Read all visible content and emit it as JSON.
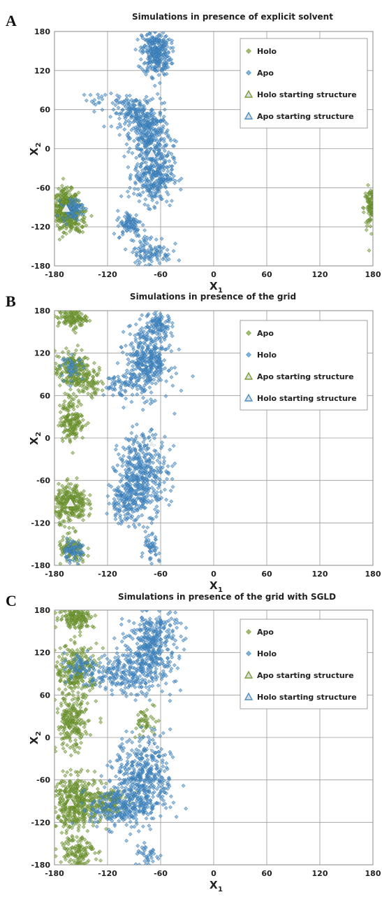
{
  "chart_data": [
    {
      "type": "scatter",
      "panel_label": "A",
      "title": "Simulations in presence of explicit solvent",
      "xlabel": "X",
      "xlabel_sub": "1",
      "ylabel": "X",
      "ylabel_sub": "2",
      "xlim": [
        -180,
        180
      ],
      "ylim": [
        -180,
        180
      ],
      "xticks": [
        "-180",
        "-120",
        "-60",
        "0",
        "60",
        "120",
        "180"
      ],
      "yticks": [
        "180",
        "120",
        "60",
        "0",
        "-60",
        "-120",
        "-180"
      ],
      "grid": true,
      "legend_position": "top-right",
      "legend": [
        "Holo",
        "Apo",
        "Holo starting structure",
        "Apo starting structure"
      ],
      "series": [
        {
          "name": "Holo",
          "marker": "diamond",
          "color": "#7aa03a",
          "clusters": [
            {
              "x": -167,
              "y": -92,
              "sx": 7,
              "sy": 14,
              "n": 420
            },
            {
              "x": -155,
              "y": -110,
              "sx": 7,
              "sy": 10,
              "n": 80
            },
            {
              "x": 178,
              "y": -92,
              "sx": 4,
              "sy": 16,
              "n": 130
            }
          ]
        },
        {
          "name": "Apo",
          "marker": "diamond",
          "color": "#4a90c8",
          "clusters": [
            {
              "x": -65,
              "y": 148,
              "sx": 8,
              "sy": 18,
              "n": 320
            },
            {
              "x": -90,
              "y": 55,
              "sx": 12,
              "sy": 12,
              "n": 160
            },
            {
              "x": -72,
              "y": 20,
              "sx": 10,
              "sy": 22,
              "n": 260
            },
            {
              "x": -68,
              "y": -40,
              "sx": 11,
              "sy": 22,
              "n": 330
            },
            {
              "x": -95,
              "y": -115,
              "sx": 7,
              "sy": 10,
              "n": 90
            },
            {
              "x": -72,
              "y": -160,
              "sx": 12,
              "sy": 14,
              "n": 120
            },
            {
              "x": -160,
              "y": -92,
              "sx": 6,
              "sy": 8,
              "n": 80
            },
            {
              "x": -120,
              "y": 75,
              "sx": 15,
              "sy": 6,
              "n": 20
            }
          ]
        },
        {
          "name": "Holo starting structure",
          "marker": "triangle",
          "color": "#7aa03a",
          "points": [
            {
              "x": -167,
              "y": -92
            }
          ]
        },
        {
          "name": "Apo starting structure",
          "marker": "triangle",
          "color": "#4a90c8",
          "points": [
            {
              "x": -70,
              "y": -8
            }
          ]
        }
      ]
    },
    {
      "type": "scatter",
      "panel_label": "B",
      "title": "Simulations in presence of the grid",
      "xlabel": "X",
      "xlabel_sub": "1",
      "ylabel": "X",
      "ylabel_sub": "2",
      "xlim": [
        -180,
        180
      ],
      "ylim": [
        -180,
        180
      ],
      "xticks": [
        "-180",
        "-120",
        "-60",
        "0",
        "60",
        "120",
        "180"
      ],
      "yticks": [
        "180",
        "120",
        "60",
        "0",
        "-60",
        "-120",
        "-180"
      ],
      "grid": true,
      "legend_position": "top-right",
      "legend": [
        "Apo",
        "Holo",
        "Apo starting structure",
        "Holo starting structure"
      ],
      "series": [
        {
          "name": "Apo",
          "marker": "diamond",
          "color": "#7aa03a",
          "clusters": [
            {
              "x": -160,
              "y": 170,
              "sx": 8,
              "sy": 7,
              "n": 130
            },
            {
              "x": -160,
              "y": 95,
              "sx": 10,
              "sy": 15,
              "n": 220
            },
            {
              "x": -160,
              "y": 25,
              "sx": 7,
              "sy": 15,
              "n": 170
            },
            {
              "x": -162,
              "y": -92,
              "sx": 9,
              "sy": 13,
              "n": 300
            },
            {
              "x": -160,
              "y": -160,
              "sx": 8,
              "sy": 10,
              "n": 110
            },
            {
              "x": -140,
              "y": 80,
              "sx": 8,
              "sy": 10,
              "n": 60
            }
          ]
        },
        {
          "name": "Holo",
          "marker": "diamond",
          "color": "#4a90c8",
          "clusters": [
            {
              "x": -75,
              "y": 110,
              "sx": 12,
              "sy": 25,
              "n": 400
            },
            {
              "x": -62,
              "y": 160,
              "sx": 6,
              "sy": 10,
              "n": 80
            },
            {
              "x": -105,
              "y": 75,
              "sx": 10,
              "sy": 8,
              "n": 60
            },
            {
              "x": -80,
              "y": -50,
              "sx": 14,
              "sy": 28,
              "n": 420
            },
            {
              "x": -100,
              "y": -90,
              "sx": 10,
              "sy": 15,
              "n": 140
            },
            {
              "x": -72,
              "y": -160,
              "sx": 5,
              "sy": 12,
              "n": 50
            },
            {
              "x": -160,
              "y": -160,
              "sx": 6,
              "sy": 7,
              "n": 70
            },
            {
              "x": -160,
              "y": 100,
              "sx": 6,
              "sy": 8,
              "n": 40
            }
          ]
        },
        {
          "name": "Apo starting structure",
          "marker": "triangle",
          "color": "#7aa03a",
          "points": [
            {
              "x": -162,
              "y": -92
            }
          ]
        },
        {
          "name": "Holo starting structure",
          "marker": "triangle",
          "color": "#4a90c8",
          "points": [
            {
              "x": -70,
              "y": -8
            }
          ]
        }
      ]
    },
    {
      "type": "scatter",
      "panel_label": "C",
      "title": "Simulations in presence of the grid with SGLD",
      "xlabel": "X",
      "xlabel_sub": "1",
      "ylabel": "X",
      "ylabel_sub": "2",
      "xlim": [
        -180,
        180
      ],
      "ylim": [
        -180,
        180
      ],
      "xticks": [
        "-180",
        "-120",
        "-60",
        "0",
        "60",
        "120",
        "180"
      ],
      "yticks": [
        "180",
        "120",
        "60",
        "0",
        "-60",
        "-120",
        "-180"
      ],
      "grid": true,
      "legend_position": "top-right",
      "legend": [
        "Apo",
        "Holo",
        "Apo starting structure",
        "Holo starting structure"
      ],
      "series": [
        {
          "name": "Apo",
          "marker": "diamond",
          "color": "#7aa03a",
          "clusters": [
            {
              "x": -155,
              "y": 170,
              "sx": 10,
              "sy": 8,
              "n": 160
            },
            {
              "x": -155,
              "y": 95,
              "sx": 12,
              "sy": 18,
              "n": 260
            },
            {
              "x": -160,
              "y": 20,
              "sx": 9,
              "sy": 20,
              "n": 230
            },
            {
              "x": -155,
              "y": -92,
              "sx": 14,
              "sy": 18,
              "n": 420
            },
            {
              "x": -155,
              "y": -160,
              "sx": 10,
              "sy": 12,
              "n": 140
            },
            {
              "x": -120,
              "y": -92,
              "sx": 10,
              "sy": 12,
              "n": 110
            },
            {
              "x": -75,
              "y": 20,
              "sx": 6,
              "sy": 14,
              "n": 50
            }
          ]
        },
        {
          "name": "Holo",
          "marker": "diamond",
          "color": "#4a90c8",
          "clusters": [
            {
              "x": -70,
              "y": 130,
              "sx": 14,
              "sy": 28,
              "n": 420
            },
            {
              "x": -105,
              "y": 90,
              "sx": 18,
              "sy": 14,
              "n": 220
            },
            {
              "x": -80,
              "y": -60,
              "sx": 16,
              "sy": 30,
              "n": 480
            },
            {
              "x": -110,
              "y": -100,
              "sx": 15,
              "sy": 14,
              "n": 200
            },
            {
              "x": -150,
              "y": 100,
              "sx": 10,
              "sy": 10,
              "n": 60
            },
            {
              "x": -75,
              "y": -165,
              "sx": 7,
              "sy": 9,
              "n": 40
            }
          ]
        },
        {
          "name": "Apo starting structure",
          "marker": "triangle",
          "color": "#7aa03a",
          "points": [
            {
              "x": -162,
              "y": -92
            }
          ]
        },
        {
          "name": "Holo starting structure",
          "marker": "triangle",
          "color": "#4a90c8",
          "points": [
            {
              "x": -70,
              "y": -12
            }
          ]
        }
      ]
    }
  ]
}
